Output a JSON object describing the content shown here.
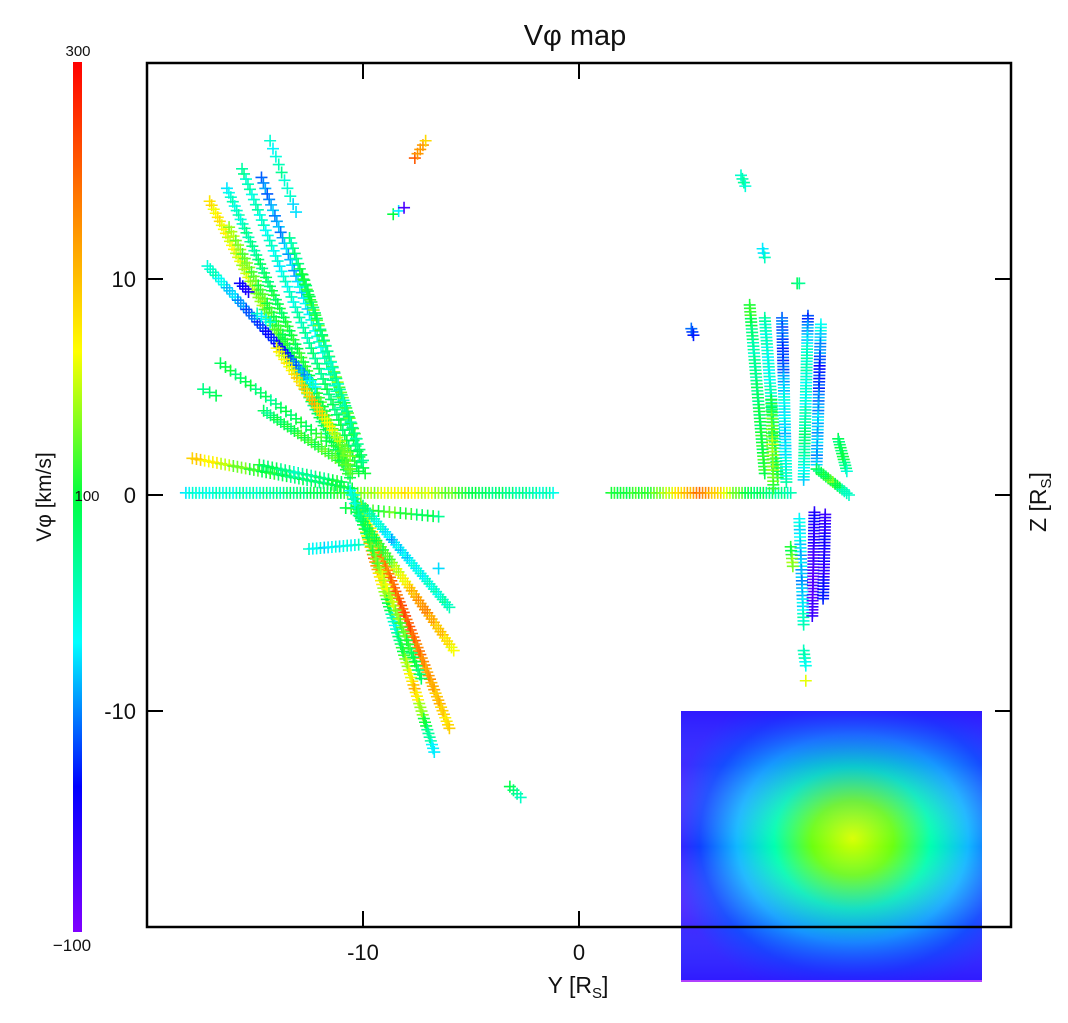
{
  "chart_data": {
    "type": "scatter",
    "title": "Vφ map",
    "xlabel": {
      "main": "Y [R",
      "sub": "S",
      "end": "]"
    },
    "ylabel": {
      "main": "Z [R",
      "sub": "S",
      "end": "]"
    },
    "xlim": [
      -20,
      20
    ],
    "ylim": [
      -20,
      20
    ],
    "x_ticks": [
      -10,
      0
    ],
    "x_tick_labels": [
      "-10",
      "0"
    ],
    "y_ticks": [
      10,
      0,
      -10
    ],
    "y_tick_labels": [
      "10",
      "0",
      "-10"
    ],
    "grid": false,
    "marker": "plus",
    "colorbar": {
      "label": "Vφ [km/s]",
      "min": -100,
      "max": 300,
      "labels": [
        "300",
        "100",
        "−100"
      ],
      "colormap": [
        "#8000ff",
        "#0000ff",
        "#00ffff",
        "#00ff40",
        "#ffff00",
        "#ff8000",
        "#ff0000"
      ]
    },
    "tracks": [
      {
        "from": [
          -18.2,
          0.1
        ],
        "to": [
          -1.2,
          0.1
        ],
        "n": 110,
        "values": [
          40,
          60,
          100,
          180,
          90,
          50
        ]
      },
      {
        "from": [
          1.5,
          0.1
        ],
        "to": [
          9.8,
          0.1
        ],
        "n": 60,
        "values": [
          100,
          120,
          240,
          100,
          60
        ]
      },
      {
        "from": [
          -17.9,
          1.7
        ],
        "to": [
          -10.5,
          0.3
        ],
        "n": 40,
        "values": [
          200,
          120,
          80,
          100
        ]
      },
      {
        "from": [
          -14.8,
          1.4
        ],
        "to": [
          -11,
          0.6
        ],
        "n": 20,
        "values": [
          100,
          60,
          100
        ]
      },
      {
        "from": [
          -10.8,
          -0.6
        ],
        "to": [
          -6.5,
          -1.0
        ],
        "n": 18,
        "values": [
          100,
          120,
          80
        ]
      },
      {
        "from": [
          -12.5,
          -2.5
        ],
        "to": [
          -10.2,
          -2.3
        ],
        "n": 14,
        "values": [
          40,
          30,
          50
        ]
      },
      {
        "from": [
          -17.1,
          13.6
        ],
        "to": [
          -10.6,
          0.8
        ],
        "n": 70,
        "values": [
          180,
          140,
          80,
          100
        ]
      },
      {
        "from": [
          -16.3,
          14.2
        ],
        "to": [
          -10.5,
          1.0
        ],
        "n": 65,
        "values": [
          40,
          90,
          110,
          120
        ]
      },
      {
        "from": [
          -15.6,
          15.1
        ],
        "to": [
          -10.2,
          1.1
        ],
        "n": 60,
        "values": [
          60,
          40,
          80,
          100
        ]
      },
      {
        "from": [
          -14.7,
          14.7
        ],
        "to": [
          -9.9,
          1.0
        ],
        "n": 55,
        "values": [
          0,
          20,
          60,
          100
        ]
      },
      {
        "from": [
          -14.3,
          16.4
        ],
        "to": [
          -13.1,
          13.1
        ],
        "n": 10,
        "values": [
          40,
          60,
          30
        ]
      },
      {
        "from": [
          -16.2,
          12.4
        ],
        "to": [
          -10.6,
          1.2
        ],
        "n": 55,
        "values": [
          140,
          110,
          90,
          120
        ]
      },
      {
        "from": [
          -13.4,
          11.9
        ],
        "to": [
          -10.3,
          2.6
        ],
        "n": 40,
        "values": [
          60,
          120,
          130,
          110
        ]
      },
      {
        "from": [
          -12.8,
          10.2
        ],
        "to": [
          -10.0,
          1.6
        ],
        "n": 35,
        "values": [
          100,
          60,
          80
        ]
      },
      {
        "from": [
          -17.2,
          10.6
        ],
        "to": [
          -12.2,
          5.0
        ],
        "n": 40,
        "values": [
          60,
          0,
          -40,
          40
        ]
      },
      {
        "from": [
          -14.0,
          6.8
        ],
        "to": [
          -10.6,
          1.8
        ],
        "n": 30,
        "values": [
          160,
          200,
          120
        ]
      },
      {
        "from": [
          -16.6,
          6.1
        ],
        "to": [
          -11.7,
          2.5
        ],
        "n": 22,
        "values": [
          100,
          80,
          110
        ]
      },
      {
        "from": [
          -14.6,
          3.9
        ],
        "to": [
          -10.8,
          1.4
        ],
        "n": 25,
        "values": [
          80,
          110,
          120
        ]
      },
      {
        "from": [
          -17.4,
          4.9
        ],
        "to": [
          -16.8,
          4.6
        ],
        "n": 3,
        "values": [
          80
        ]
      },
      {
        "from": [
          -14.9,
          8.4
        ],
        "to": [
          -14.3,
          8.0
        ],
        "n": 4,
        "values": [
          40
        ]
      },
      {
        "from": [
          -15.7,
          9.8
        ],
        "to": [
          -15.3,
          9.4
        ],
        "n": 4,
        "values": [
          -40
        ]
      },
      {
        "from": [
          -10.4,
          0.0
        ],
        "to": [
          -6.7,
          -11.9
        ],
        "n": 70,
        "values": [
          60,
          240,
          40,
          200,
          20
        ]
      },
      {
        "from": [
          -10.1,
          -0.4
        ],
        "to": [
          -6.0,
          -10.8
        ],
        "n": 65,
        "values": [
          120,
          230,
          260,
          220,
          180
        ]
      },
      {
        "from": [
          -10.6,
          0.2
        ],
        "to": [
          -7.3,
          -8.5
        ],
        "n": 45,
        "values": [
          40,
          160,
          80
        ]
      },
      {
        "from": [
          -10.3,
          -0.8
        ],
        "to": [
          -5.8,
          -7.2
        ],
        "n": 45,
        "values": [
          80,
          120,
          230,
          170
        ]
      },
      {
        "from": [
          -10.0,
          -0.5
        ],
        "to": [
          -6.0,
          -5.2
        ],
        "n": 40,
        "values": [
          80,
          20,
          40,
          60
        ]
      },
      {
        "from": [
          -7.6,
          15.6
        ],
        "to": [
          -7.1,
          16.4
        ],
        "n": 5,
        "values": [
          240,
          220,
          200
        ]
      },
      {
        "from": [
          -8.6,
          13.0
        ],
        "to": [
          -8.1,
          13.3
        ],
        "n": 3,
        "values": [
          100,
          -60
        ]
      },
      {
        "from": [
          -3.2,
          -13.5
        ],
        "to": [
          -2.7,
          -14.0
        ],
        "n": 4,
        "values": [
          110,
          40
        ]
      },
      {
        "from": [
          -6.5,
          -3.4
        ],
        "to": [
          -6.4,
          -3.5
        ],
        "n": 1,
        "values": [
          20
        ]
      },
      {
        "from": [
          7.5,
          14.8
        ],
        "to": [
          7.7,
          14.3
        ],
        "n": 4,
        "values": [
          60
        ]
      },
      {
        "from": [
          8.5,
          11.4
        ],
        "to": [
          8.6,
          11.0
        ],
        "n": 3,
        "values": [
          20,
          60
        ]
      },
      {
        "from": [
          5.2,
          7.7
        ],
        "to": [
          5.3,
          7.4
        ],
        "n": 3,
        "values": [
          0,
          -40
        ]
      },
      {
        "from": [
          10.1,
          9.8
        ],
        "to": [
          10.2,
          9.8
        ],
        "n": 2,
        "values": [
          80
        ]
      },
      {
        "from": [
          10.5,
          -8.6
        ],
        "to": [
          10.6,
          -8.6
        ],
        "n": 1,
        "values": [
          160
        ]
      },
      {
        "from": [
          7.9,
          8.8
        ],
        "to": [
          8.6,
          1.0
        ],
        "n": 50,
        "values": [
          120,
          60,
          80,
          100,
          110
        ]
      },
      {
        "from": [
          8.6,
          8.2
        ],
        "to": [
          9.2,
          0.8
        ],
        "n": 50,
        "values": [
          60,
          40,
          80,
          100
        ]
      },
      {
        "from": [
          9.4,
          8.2
        ],
        "to": [
          9.6,
          0.6
        ],
        "n": 55,
        "values": [
          0,
          -20,
          40,
          20,
          60
        ]
      },
      {
        "from": [
          10.6,
          8.3
        ],
        "to": [
          10.4,
          0.7
        ],
        "n": 55,
        "values": [
          -20,
          60,
          40,
          80,
          30
        ]
      },
      {
        "from": [
          11.2,
          7.9
        ],
        "to": [
          11.0,
          1.4
        ],
        "n": 45,
        "values": [
          40,
          -30,
          20,
          10
        ]
      },
      {
        "from": [
          12.0,
          2.6
        ],
        "to": [
          12.4,
          1.1
        ],
        "n": 12,
        "values": [
          80,
          100,
          60
        ]
      },
      {
        "from": [
          8.9,
          4.4
        ],
        "to": [
          9.0,
          0.3
        ],
        "n": 25,
        "values": [
          100,
          140,
          120
        ]
      },
      {
        "from": [
          10.9,
          -0.8
        ],
        "to": [
          10.8,
          -5.6
        ],
        "n": 35,
        "values": [
          -40,
          -60,
          -80,
          -70
        ]
      },
      {
        "from": [
          11.4,
          -0.9
        ],
        "to": [
          11.3,
          -4.8
        ],
        "n": 28,
        "values": [
          -70,
          -40,
          -60,
          -20
        ]
      },
      {
        "from": [
          10.2,
          -1.1
        ],
        "to": [
          10.4,
          -6.0
        ],
        "n": 30,
        "values": [
          40,
          20,
          10,
          60
        ]
      },
      {
        "from": [
          9.8,
          -2.4
        ],
        "to": [
          9.9,
          -3.3
        ],
        "n": 6,
        "values": [
          100,
          140
        ]
      },
      {
        "from": [
          10.4,
          -7.2
        ],
        "to": [
          10.5,
          -7.9
        ],
        "n": 5,
        "values": [
          60,
          40
        ]
      },
      {
        "from": [
          11.0,
          1.2
        ],
        "to": [
          12.5,
          0.0
        ],
        "n": 15,
        "values": [
          80,
          120,
          40
        ]
      }
    ]
  }
}
